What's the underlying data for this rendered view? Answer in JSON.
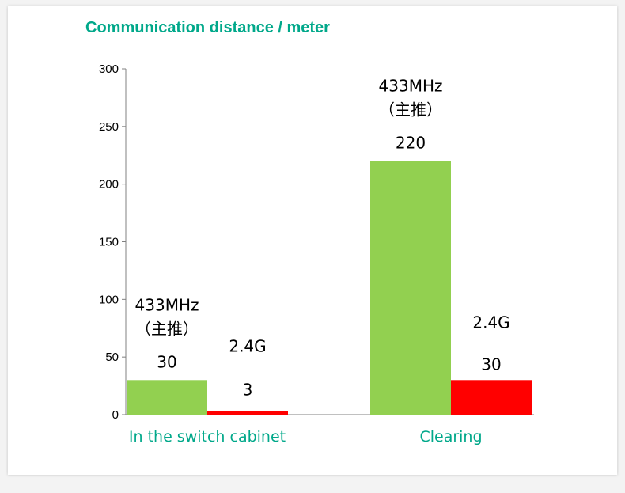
{
  "chart_data": {
    "type": "bar",
    "title": "Communication distance / meter",
    "categories": [
      "In the switch cabinet",
      "Clearing"
    ],
    "series": [
      {
        "name": "433MHz",
        "note": "（主推）",
        "color": "#92d050",
        "values": [
          30,
          220
        ]
      },
      {
        "name": "2.4G",
        "color": "#ff0000",
        "values": [
          3,
          30
        ]
      }
    ],
    "ylim": [
      0,
      300
    ],
    "yticks": [
      0,
      50,
      100,
      150,
      200,
      250,
      300
    ],
    "grid": false,
    "legend": "none",
    "title_color": "#00a88a",
    "category_color": "#00a88a"
  }
}
